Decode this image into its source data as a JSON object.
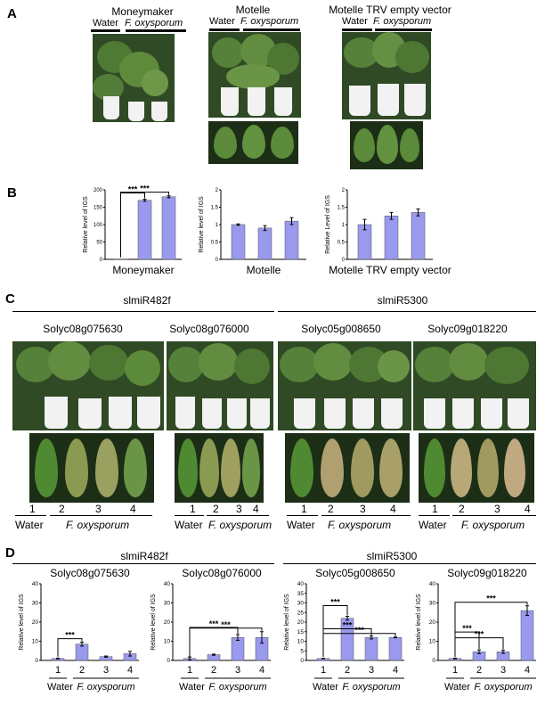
{
  "panel_labels": {
    "A": "A",
    "B": "B",
    "C": "C",
    "D": "D"
  },
  "panelA": {
    "groups": [
      {
        "title": "Moneymaker",
        "sub_water": "Water",
        "sub_fox": "F. oxysporum",
        "photo": "tomato plants in pots"
      },
      {
        "title": "Motelle",
        "sub_water": "Water",
        "sub_fox": "F. oxysporum",
        "photo": "tomato plants and detached leaves"
      },
      {
        "title": "Motelle TRV empty vector",
        "sub_water": "Water",
        "sub_fox": "F. oxysporum",
        "photo": "tomato plants and detached leaves"
      }
    ]
  },
  "chart_data": [
    {
      "id": "B1",
      "type": "bar",
      "xlabel": "Moneymaker",
      "ylabel": "Relative level of IGS",
      "ylim": [
        0,
        200
      ],
      "yticks": [
        "0",
        "50",
        "100",
        "150",
        "200"
      ],
      "values": [
        1,
        170,
        180
      ],
      "errors": [
        0,
        3,
        3
      ],
      "sig": [
        "***",
        "***"
      ],
      "color": "#9999ee"
    },
    {
      "id": "B2",
      "type": "bar",
      "xlabel": "Motelle",
      "ylabel": "Relative level of IGS",
      "ylim": [
        0,
        2
      ],
      "yticks": [
        "0",
        "0.5",
        "1",
        "1.5",
        "2"
      ],
      "values": [
        1.0,
        0.9,
        1.1
      ],
      "errors": [
        0.02,
        0.07,
        0.1
      ],
      "color": "#9999ee"
    },
    {
      "id": "B3",
      "type": "bar",
      "xlabel": "Motelle TRV empty vector",
      "ylabel": "Relative Level of IGS",
      "ylim": [
        0,
        2
      ],
      "yticks": [
        "0",
        "0.5",
        "1",
        "1.5",
        "2"
      ],
      "values": [
        1.0,
        1.25,
        1.35
      ],
      "errors": [
        0.15,
        0.1,
        0.1
      ],
      "color": "#9999ee"
    },
    {
      "id": "D1",
      "type": "bar",
      "title": "Solyc08g075630",
      "ylabel": "Relative level of IGS",
      "ylim": [
        0,
        40
      ],
      "yticks": [
        "0",
        "10",
        "20",
        "30",
        "40"
      ],
      "categories": [
        "1",
        "2",
        "3",
        "4"
      ],
      "values": [
        1.0,
        8.5,
        2.0,
        3.5
      ],
      "errors": [
        0.2,
        1.0,
        0.3,
        1.2
      ],
      "sig": [
        "***"
      ],
      "color": "#9999ee"
    },
    {
      "id": "D2",
      "type": "bar",
      "title": "Solyc08g076000",
      "ylabel": "Relative level of IGS",
      "ylim": [
        0,
        40
      ],
      "yticks": [
        "0",
        "10",
        "20",
        "30",
        "40"
      ],
      "categories": [
        "1",
        "2",
        "3",
        "4"
      ],
      "values": [
        1.0,
        3.0,
        12.0,
        12.0
      ],
      "errors": [
        0.8,
        0.3,
        1.5,
        3.0
      ],
      "sig": [
        "***",
        "***"
      ],
      "color": "#9999ee"
    },
    {
      "id": "D3",
      "type": "bar",
      "title": "Solyc05g008650",
      "ylabel": "Relative level of IGS",
      "ylim": [
        0,
        40
      ],
      "yticks": [
        "0",
        "5",
        "10",
        "15",
        "20",
        "25",
        "30",
        "35",
        "40"
      ],
      "categories": [
        "1",
        "2",
        "3",
        "4"
      ],
      "values": [
        1.0,
        22.0,
        12.0,
        12.0
      ],
      "errors": [
        0.1,
        1.0,
        0.8,
        0.2
      ],
      "sig": [
        "***",
        "***",
        "***"
      ],
      "color": "#9999ee"
    },
    {
      "id": "D4",
      "type": "bar",
      "title": "Solyc09g018220",
      "ylabel": "Relative level of IGS",
      "ylim": [
        0,
        40
      ],
      "yticks": [
        "0",
        "10",
        "20",
        "30",
        "40"
      ],
      "categories": [
        "1",
        "2",
        "3",
        "4"
      ],
      "values": [
        1.0,
        4.5,
        4.5,
        26.0
      ],
      "errors": [
        0.2,
        1.0,
        0.8,
        2.5
      ],
      "sig": [
        "***",
        "***",
        "***"
      ],
      "color": "#9999ee"
    }
  ],
  "panelC": {
    "mirnas": [
      "slmiR482f",
      "slmiR5300"
    ],
    "genes": [
      "Solyc08g075630",
      "Solyc08g076000",
      "Solyc05g008650",
      "Solyc09g018220"
    ],
    "lanes": [
      "1",
      "2",
      "3",
      "4"
    ],
    "water": "Water",
    "fox": "F. oxysporum"
  },
  "panelD": {
    "mirnas": [
      "slmiR482f",
      "slmiR5300"
    ],
    "water": "Water",
    "fox": "F. oxysporum"
  }
}
